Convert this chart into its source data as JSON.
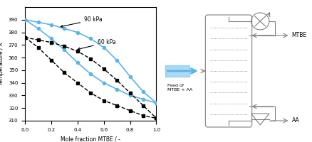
{
  "left_panel": {
    "xlabel": "Mole fraction MTBE / -",
    "ylabel": "Temperature / K",
    "ylim": [
      310,
      400
    ],
    "xlim": [
      0.0,
      1.0
    ],
    "xticks": [
      0.0,
      0.2,
      0.4,
      0.6,
      0.8,
      1.0
    ],
    "yticks": [
      310,
      320,
      330,
      340,
      350,
      360,
      370,
      380,
      390
    ],
    "label_90kPa": "90 kPa",
    "label_60kPa": "60 kPa",
    "bg_color": "#ffffff",
    "line_color_90": "#5ab4e8",
    "line_color_60": "#000000",
    "x_liquid_90": [
      0.0,
      0.1,
      0.2,
      0.3,
      0.4,
      0.5,
      0.6,
      0.7,
      0.8,
      0.9,
      1.0
    ],
    "y_liquid_90": [
      390,
      383,
      375,
      366,
      356,
      347,
      340,
      335,
      330,
      327,
      324
    ],
    "x_vapor_90": [
      0.0,
      0.1,
      0.2,
      0.3,
      0.4,
      0.5,
      0.6,
      0.7,
      0.8,
      0.9,
      1.0
    ],
    "y_vapor_90": [
      390,
      388,
      386,
      383,
      380,
      375,
      368,
      358,
      345,
      333,
      324
    ],
    "x_liquid_60": [
      0.0,
      0.1,
      0.2,
      0.3,
      0.4,
      0.5,
      0.6,
      0.7,
      0.8,
      0.9,
      1.0
    ],
    "y_liquid_60": [
      376,
      368,
      358,
      348,
      340,
      332,
      326,
      322,
      318,
      314,
      312
    ],
    "x_vapor_60": [
      0.0,
      0.1,
      0.2,
      0.3,
      0.4,
      0.5,
      0.6,
      0.7,
      0.8,
      0.9,
      1.0
    ],
    "y_vapor_60": [
      376,
      374,
      372,
      369,
      365,
      359,
      351,
      342,
      332,
      322,
      312
    ]
  },
  "right_panel": {
    "column_label": "",
    "feed_label": "Feed of\nMTBE + AA",
    "mtbe_label": "MTBE",
    "aa_label": "AA",
    "arrow_color": "#5ab4e8",
    "column_color": "#d0d0d0",
    "line_color": "#808080"
  }
}
